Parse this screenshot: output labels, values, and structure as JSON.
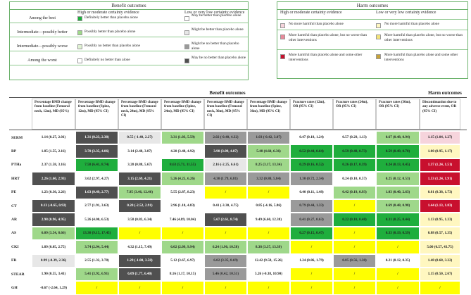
{
  "benefit_legend": {
    "title": "Benefit outcomes",
    "header_high": "High or moderate certainty evidence",
    "header_low": "Low or very low certainty evidence",
    "rows": [
      {
        "rank": "Among the best",
        "high_text": "Definitely better than placebo alone",
        "high_color": "#1fae3d",
        "low_text": "May be better than placebo alone",
        "low_color": "#ffffff"
      },
      {
        "rank": "Intermediate—possibly better",
        "high_text": "Possibly better than placebo alone",
        "high_color": "#9fd88a",
        "low_text": "Might be better than placebo alone",
        "low_color": "#e7e7e7"
      },
      {
        "rank": "Intermediate—possibly worse",
        "high_text": "Possibly no better than placebo alone",
        "high_color": "#dff2d2",
        "low_text": "Might be no better than placebo alone",
        "low_color": "#9a9a9a"
      },
      {
        "rank": "Among the worst",
        "high_text": "Definitely no better than   alone",
        "high_color": "#ffffff",
        "low_text": "May be no better than placebo alone",
        "low_color": "#505050"
      }
    ]
  },
  "harm_legend": {
    "title": "Harm outcomes",
    "header_high": "High or moderate certainty evidence",
    "header_low": "Low or very low certainty evidence",
    "rows": [
      {
        "high_text": "No more harmful than placebo alone",
        "high_color": "#f6d4dc",
        "low_text": "No more harmful than placebo alone",
        "low_color": "#fff7c0"
      },
      {
        "high_text": "More harmful than placebo alone, but no worse than other interventions",
        "high_color": "#e8899a",
        "low_text": "More harmful than placebo alone, but no worse than other interventions",
        "low_color": "#f3e37a"
      },
      {
        "high_text": "More harmful than placebo alone and some other interventions",
        "high_color": "#c8102e",
        "low_text": "More harmful than placebo alone and some other interventions",
        "low_color": "#c7a33a"
      }
    ]
  },
  "table": {
    "group_benefit": "Benefit outcomes",
    "group_harm": "Harm outcomes",
    "columns": [
      "Percentage BMD change from baseline (Femoral neck, 12m), MD (95%)",
      "Percentage BMD change from baseline (Spine, 12m), MD (95% CI)",
      "Percentage BMD change from baseline (Femoral neck, 24m), MD (95% CI)",
      "Percentage BMD change from baseline (Spine, 24m), MD (95% CI)",
      "Percentage BMD change from baseline (Femoral neck, 36m), MD (95% CI)",
      "Percentage BMD change from baseline (Spine, 36m), MD (95% CI)",
      "Fracture rates (12m), OR (95% CI)",
      "Fracture rates (24m), OR (95% CI)",
      "Fracture rates (36m), OR (95% CI)",
      "Discontinuation due to any adverse event, OR (95% CI)"
    ],
    "rows": [
      {
        "label": "SERM",
        "cells": [
          [
            "1.14 (0.27, 2.01)",
            "#ffffff"
          ],
          [
            "1.31 (0.23, 2.38)",
            "#505050"
          ],
          [
            "0.55 (-1.40, 2.27)",
            "#e7e7e7"
          ],
          [
            "3.31 (1.03, 5.59)",
            "#9fd88a"
          ],
          [
            "2.02 (-0.40, 4.32)",
            "#9a9a9a"
          ],
          [
            "1.03 (-0.42, 3.07)",
            "#9a9a9a"
          ],
          [
            "0.47 (0.18, 1.24)",
            "#ffffff"
          ],
          [
            "0.57 (0.29, 1.13)",
            "#ffffff"
          ],
          [
            "0.67 (0.48, 0.94)",
            "#9fd88a"
          ],
          [
            "1.15 (1.04, 1.27)",
            "#f6d4dc"
          ]
        ]
      },
      {
        "label": "BP",
        "cells": [
          [
            "1.85 (1.55, 2.16)",
            "#ffffff"
          ],
          [
            "3.70 (3.35, 4.06)",
            "#505050"
          ],
          [
            "3.14 (2.48, 3.87)",
            "#ffffff"
          ],
          [
            "4.20 (3.48, 4.92)",
            "#ffffff"
          ],
          [
            "3.90 (3.09, 4.87)",
            "#505050"
          ],
          [
            "5.48 (4.60, 6.36)",
            "#9fd88a"
          ],
          [
            "0.52 (0.44, 0.64)",
            "#1fae3d"
          ],
          [
            "0.59 (0.48, 0.73)",
            "#1fae3d"
          ],
          [
            "0.59 (0.49, 0.70)",
            "#1fae3d"
          ],
          [
            "1.00 (0.95, 1.17)",
            "#fff7c0"
          ]
        ]
      },
      {
        "label": "PTHa",
        "cells": [
          [
            "2.37 (1.58, 3.16)",
            "#ffffff"
          ],
          [
            "7.58 (6.41, 8.74)",
            "#1fae3d"
          ],
          [
            "3.28 (0.88, 5.67)",
            "#ffffff"
          ],
          [
            "8.63 (5.71, 11.55)",
            "#1fae3d"
          ],
          [
            "2.16 (-2.25, 6.61)",
            "#e7e7e7"
          ],
          [
            "8.25 (3.17, 13.34)",
            "#9fd88a"
          ],
          [
            "0.29 (0.16, 0.52)",
            "#1fae3d"
          ],
          [
            "0.26 (0.17, 0.39)",
            "#1fae3d"
          ],
          [
            "0.24 (0.13, 0.45)",
            "#1fae3d"
          ],
          [
            "1.37 (1.24, 1.51)",
            "#c8102e"
          ]
        ]
      },
      {
        "label": "HRT",
        "cells": [
          [
            "2.26 (1.60, 2.93)",
            "#505050"
          ],
          [
            "3.62 (2.97, 4.27)",
            "#ffffff"
          ],
          [
            "3.15 (2.69, 4.21)",
            "#505050"
          ],
          [
            "5.26 (4.25, 6.26)",
            "#9fd88a"
          ],
          [
            "4.30 (1.79, 6.81)",
            "#9a9a9a"
          ],
          [
            "3.32 (0.80, 5.84)",
            "#9a9a9a"
          ],
          [
            "1.30 (0.72, 2.34)",
            "#9a9a9a"
          ],
          [
            "0.24 (0.10, 0.57)",
            "#ffffff"
          ],
          [
            "0.25 (0.12, 0.53)",
            "#9fd88a"
          ],
          [
            "1.53 (1.24, 1.91)",
            "#c8102e"
          ]
        ]
      },
      {
        "label": "PE",
        "cells": [
          [
            "1.23 (0.30, 2.26)",
            "#ffffff"
          ],
          [
            "1.63 (0.49, 2.77)",
            "#505050"
          ],
          [
            "7.95 (3.46, 12.46)",
            "#9fd88a"
          ],
          [
            "5.55 (2.87, 8.23)",
            "#ffffff"
          ],
          [
            "/",
            "#ffff00"
          ],
          [
            "/",
            "#ffff00"
          ],
          [
            "0.40 (0.11, 1.48)",
            "#ffffff"
          ],
          [
            "0.42 (0.19, 0.93)",
            "#9fd88a"
          ],
          [
            "1.03 (0.40, 2.63)",
            "#9fd88a"
          ],
          [
            "0.81 (0.38, 1.73)",
            "#fff7c0"
          ]
        ]
      },
      {
        "label": "CT",
        "cells": [
          [
            "0.13 (-0.65, 0.92)",
            "#505050"
          ],
          [
            "2.77 (1.91, 3.63)",
            "#ffffff"
          ],
          [
            "0.20 (-2.52, 2.91)",
            "#505050"
          ],
          [
            "2.96 (1.10, 4.83)",
            "#ffffff"
          ],
          [
            "0.41 (-3.30, 4.75)",
            "#ffffff"
          ],
          [
            "0.85 (-4.16, 5.86)",
            "#ffffff"
          ],
          [
            "0.79 (0.44, 1.33)",
            "#9a9a9a"
          ],
          [
            "/",
            "#ffff00"
          ],
          [
            "0.69 (0.48, 0.98)",
            "#9fd88a"
          ],
          [
            "1.44 (1.13, 1.83)",
            "#c8102e"
          ]
        ]
      },
      {
        "label": "AR",
        "cells": [
          [
            "2.98 (0.96, 4.95)",
            "#505050"
          ],
          [
            "5.26 (4.00, 6.53)",
            "#ffffff"
          ],
          [
            "3.58 (0.83, 6.34)",
            "#ffffff"
          ],
          [
            "7.46 (4.89, 10.04)",
            "#ffffff"
          ],
          [
            "5.67 (2.61, 8.74)",
            "#505050"
          ],
          [
            "9.49 (6.60, 12.38)",
            "#ffffff"
          ],
          [
            "0.41 (0.27, 0.63)",
            "#9a9a9a"
          ],
          [
            "0.22 (0.10, 0.48)",
            "#1fae3d"
          ],
          [
            "0.31 (0.25, 0.44)",
            "#1fae3d"
          ],
          [
            "1.13 (0.95, 1.33)",
            "#fff7c0"
          ]
        ]
      },
      {
        "label": "AS",
        "cells": [
          [
            "6.09 (3.54, 8.66)",
            "#9fd88a"
          ],
          [
            "13.30 (9.15, 17.45)",
            "#1fae3d"
          ],
          [
            "/",
            "#ffff00"
          ],
          [
            "/",
            "#ffff00"
          ],
          [
            "/",
            "#ffff00"
          ],
          [
            "/",
            "#ffff00"
          ],
          [
            "0.27 (0.15, 0.47)",
            "#1fae3d"
          ],
          [
            "/",
            "#ffff00"
          ],
          [
            "0.33 (0.19, 0.59)",
            "#1fae3d"
          ],
          [
            "0.88 (0.57, 1.35)",
            "#fff7c0"
          ]
        ]
      },
      {
        "label": "CKI",
        "cells": [
          [
            "1.89 (0.05, 2.75)",
            "#ffffff"
          ],
          [
            "3.74 (2.94, 5.44)",
            "#9fd88a"
          ],
          [
            "4.32 (1.15, 7.49)",
            "#ffffff"
          ],
          [
            "6.02 (2.09, 9.94)",
            "#9fd88a"
          ],
          [
            "6.24 (1.90, 10.58)",
            "#9fd88a"
          ],
          [
            "8.38 (3.37, 13.39)",
            "#9fd88a"
          ],
          [
            "/",
            "#ffff00"
          ],
          [
            "/",
            "#ffff00"
          ],
          [
            "/",
            "#ffff00"
          ],
          [
            "5.00 (0.57, 43.75)",
            "#fff7c0"
          ]
        ]
      },
      {
        "label": "FR",
        "cells": [
          [
            "0.99 (-0.39, 2.36)",
            "#e7e7e7"
          ],
          [
            "2.55 (1.32, 3.78)",
            "#ffffff"
          ],
          [
            "1.29 (-1.00, 3.58)",
            "#505050"
          ],
          [
            "5.12 (3.67, 6.97)",
            "#ffffff"
          ],
          [
            "6.02 (3.35, 8.69)",
            "#9a9a9a"
          ],
          [
            "12.42 (9.58, 15.26)",
            "#ffffff"
          ],
          [
            "1.24 (0.86, 1.79)",
            "#ffffff"
          ],
          [
            "0.85 (0.56, 1.30)",
            "#9a9a9a"
          ],
          [
            "0.21 (0.12, 0.35)",
            "#ffffff"
          ],
          [
            "1.48 (0.68, 3.22)",
            "#fff7c0"
          ]
        ]
      },
      {
        "label": "STEAR",
        "cells": [
          [
            "1.90 (0.55, 3.41)",
            "#ffffff"
          ],
          [
            "5.41 (3.92, 6.91)",
            "#9fd88a"
          ],
          [
            "6.09 (1.77, 6.40)",
            "#505050"
          ],
          [
            "8.16 (1.17, 10.15)",
            "#ffffff"
          ],
          [
            "5.46 (0.42, 10.51)",
            "#9a9a9a"
          ],
          [
            "5.26 (-0.38, 10.90)",
            "#ffffff"
          ],
          [
            "/",
            "#ffff00"
          ],
          [
            "/",
            "#ffff00"
          ],
          [
            "/",
            "#ffff00"
          ],
          [
            "1.15 (0.50, 2.67)",
            "#fff7c0"
          ]
        ]
      },
      {
        "label": "GH",
        "cells": [
          [
            "-0.67 (-2.64, 1.29)",
            "#ffffff"
          ],
          [
            "/",
            "#ffff00"
          ],
          [
            "/",
            "#ffff00"
          ],
          [
            "/",
            "#ffff00"
          ],
          [
            "/",
            "#ffff00"
          ],
          [
            "/",
            "#ffff00"
          ],
          [
            "/",
            "#ffff00"
          ],
          [
            "/",
            "#ffff00"
          ],
          [
            "/",
            "#ffff00"
          ],
          [
            "/",
            "#ffff00"
          ]
        ]
      }
    ]
  }
}
